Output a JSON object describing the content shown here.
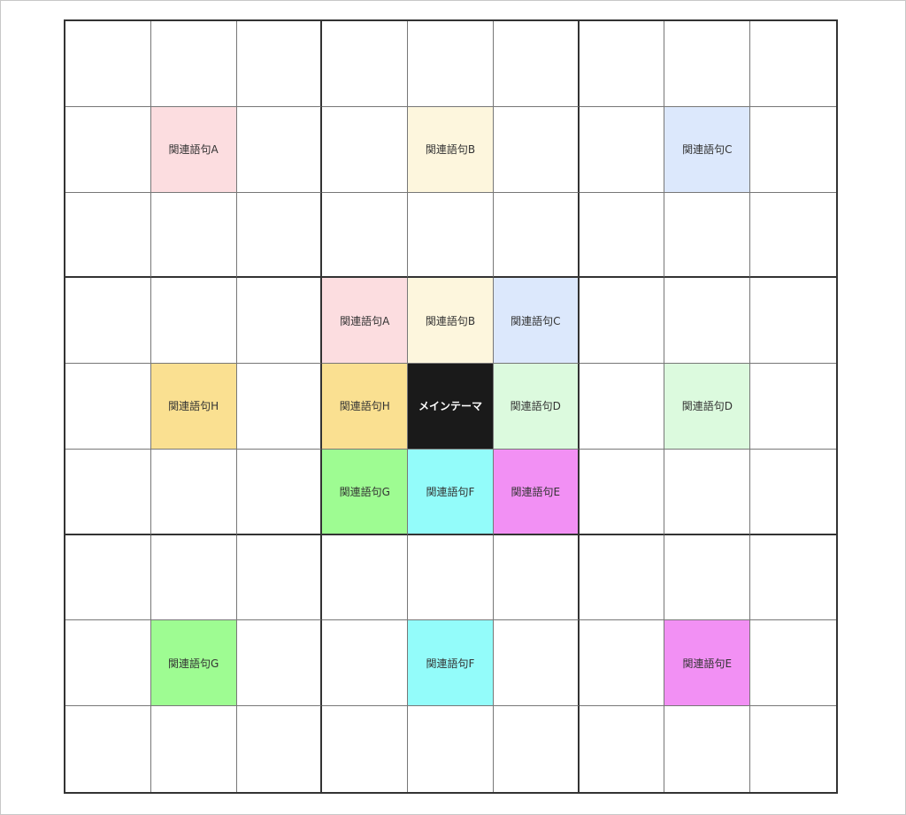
{
  "colors": {
    "A": "#fcdde0",
    "B": "#fdf6dd",
    "C": "#dce8fc",
    "D": "#dcfade",
    "E": "#f290f4",
    "F": "#93fcfa",
    "G": "#9efc92",
    "H": "#fae091",
    "main": "#1a1a1a"
  },
  "grid": [
    [
      "",
      "",
      "",
      "",
      "",
      "",
      "",
      "",
      ""
    ],
    [
      "",
      "関連語句A",
      "",
      "",
      "関連語句B",
      "",
      "",
      "関連語句C",
      ""
    ],
    [
      "",
      "",
      "",
      "",
      "",
      "",
      "",
      "",
      ""
    ],
    [
      "",
      "",
      "",
      "関連語句A",
      "関連語句B",
      "関連語句C",
      "",
      "",
      ""
    ],
    [
      "",
      "関連語句H",
      "",
      "関連語句H",
      "メインテーマ",
      "関連語句D",
      "",
      "関連語句D",
      ""
    ],
    [
      "",
      "",
      "",
      "関連語句G",
      "関連語句F",
      "関連語句E",
      "",
      "",
      ""
    ],
    [
      "",
      "",
      "",
      "",
      "",
      "",
      "",
      "",
      ""
    ],
    [
      "",
      "関連語句G",
      "",
      "",
      "関連語句F",
      "",
      "",
      "関連語句E",
      ""
    ],
    [
      "",
      "",
      "",
      "",
      "",
      "",
      "",
      "",
      ""
    ]
  ]
}
